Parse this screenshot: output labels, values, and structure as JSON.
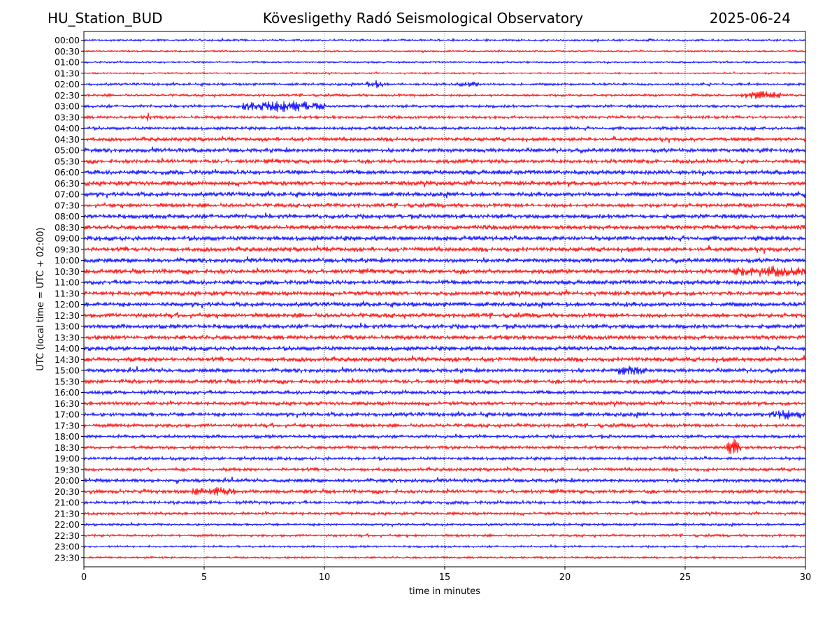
{
  "header": {
    "station": "HU_Station_BUD",
    "observatory": "Köveslig­ethy Radó Seismological Observatory",
    "date": "2025-06-24"
  },
  "chart_data": {
    "type": "line",
    "title": "Köveslig­ethy Radó Seismological Observatory",
    "xlabel": "time in minutes",
    "ylabel": "UTC (local time = UTC + 02:00)",
    "xlim": [
      0,
      30
    ],
    "xticks": [
      0,
      5,
      10,
      15,
      20,
      25,
      30
    ],
    "grid": "vertical dotted at x ticks",
    "colors": [
      "#0000ff",
      "#ff0000"
    ],
    "rows": [
      "00:00",
      "00:30",
      "01:00",
      "01:30",
      "02:00",
      "02:30",
      "03:00",
      "03:30",
      "04:00",
      "04:30",
      "05:00",
      "05:30",
      "06:00",
      "06:30",
      "07:00",
      "07:30",
      "08:00",
      "08:30",
      "09:00",
      "09:30",
      "10:00",
      "10:30",
      "11:00",
      "11:30",
      "12:00",
      "12:30",
      "13:00",
      "13:30",
      "14:00",
      "14:30",
      "15:00",
      "15:30",
      "16:00",
      "16:30",
      "17:00",
      "17:30",
      "18:00",
      "18:30",
      "19:00",
      "19:30",
      "20:00",
      "20:30",
      "21:00",
      "21:30",
      "22:00",
      "22:30",
      "23:00",
      "23:30"
    ],
    "noise_level": [
      0.25,
      0.2,
      0.22,
      0.2,
      0.3,
      0.3,
      0.35,
      0.35,
      0.4,
      0.45,
      0.5,
      0.5,
      0.55,
      0.55,
      0.55,
      0.5,
      0.55,
      0.55,
      0.6,
      0.55,
      0.55,
      0.55,
      0.55,
      0.55,
      0.55,
      0.55,
      0.55,
      0.55,
      0.55,
      0.55,
      0.5,
      0.5,
      0.45,
      0.45,
      0.5,
      0.45,
      0.4,
      0.4,
      0.4,
      0.4,
      0.45,
      0.45,
      0.4,
      0.35,
      0.3,
      0.3,
      0.25,
      0.25
    ],
    "events": [
      {
        "row": "02:00",
        "start": 11.7,
        "end": 12.5,
        "amp": 1.4
      },
      {
        "row": "02:00",
        "start": 15.5,
        "end": 16.5,
        "amp": 0.8
      },
      {
        "row": "02:30",
        "start": 27.3,
        "end": 29.0,
        "amp": 1.4
      },
      {
        "row": "03:00",
        "start": 6.5,
        "end": 10.0,
        "amp": 1.8
      },
      {
        "row": "03:30",
        "start": 2.6,
        "end": 2.8,
        "amp": 2.0
      },
      {
        "row": "10:30",
        "start": 27.0,
        "end": 30.0,
        "amp": 0.9
      },
      {
        "row": "15:00",
        "start": 22.0,
        "end": 23.4,
        "amp": 0.9
      },
      {
        "row": "17:00",
        "start": 28.5,
        "end": 30.0,
        "amp": 0.9
      },
      {
        "row": "18:30",
        "start": 26.7,
        "end": 27.3,
        "amp": 3.0
      },
      {
        "row": "20:30",
        "start": 4.5,
        "end": 6.3,
        "amp": 0.9
      }
    ]
  }
}
